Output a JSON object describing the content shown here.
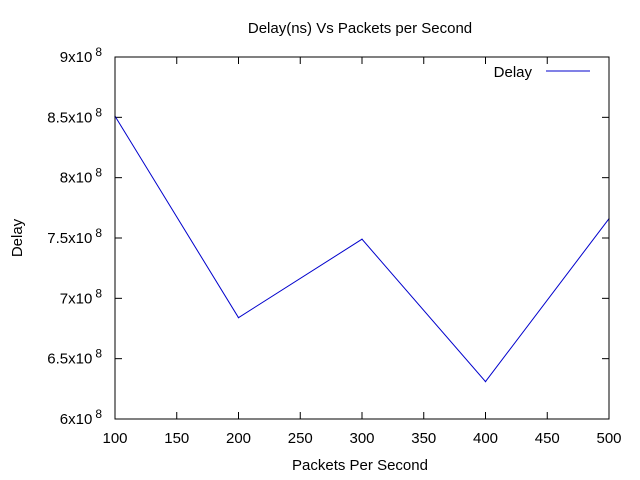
{
  "chart_data": {
    "type": "line",
    "title": "Delay(ns) Vs Packets per Second",
    "xlabel": "Packets Per Second",
    "ylabel": "Delay",
    "xlim": [
      100,
      500
    ],
    "ylim": [
      600000000,
      900000000
    ],
    "x_ticks": [
      100,
      150,
      200,
      250,
      300,
      350,
      400,
      450,
      500
    ],
    "y_ticks": [
      {
        "value": 600000000,
        "mantissa": "6x10",
        "exp": "8"
      },
      {
        "value": 650000000,
        "mantissa": "6.5x10",
        "exp": "8"
      },
      {
        "value": 700000000,
        "mantissa": "7x10",
        "exp": "8"
      },
      {
        "value": 750000000,
        "mantissa": "7.5x10",
        "exp": "8"
      },
      {
        "value": 800000000,
        "mantissa": "8x10",
        "exp": "8"
      },
      {
        "value": 850000000,
        "mantissa": "8.5x10",
        "exp": "8"
      },
      {
        "value": 900000000,
        "mantissa": "9x10",
        "exp": "8"
      }
    ],
    "grid": false,
    "legend_position": "top-right",
    "series": [
      {
        "name": "Delay",
        "color": "#0000cc",
        "x": [
          100,
          200,
          300,
          400,
          500
        ],
        "y": [
          851000000,
          684000000,
          749000000,
          631000000,
          766000000
        ]
      }
    ]
  }
}
